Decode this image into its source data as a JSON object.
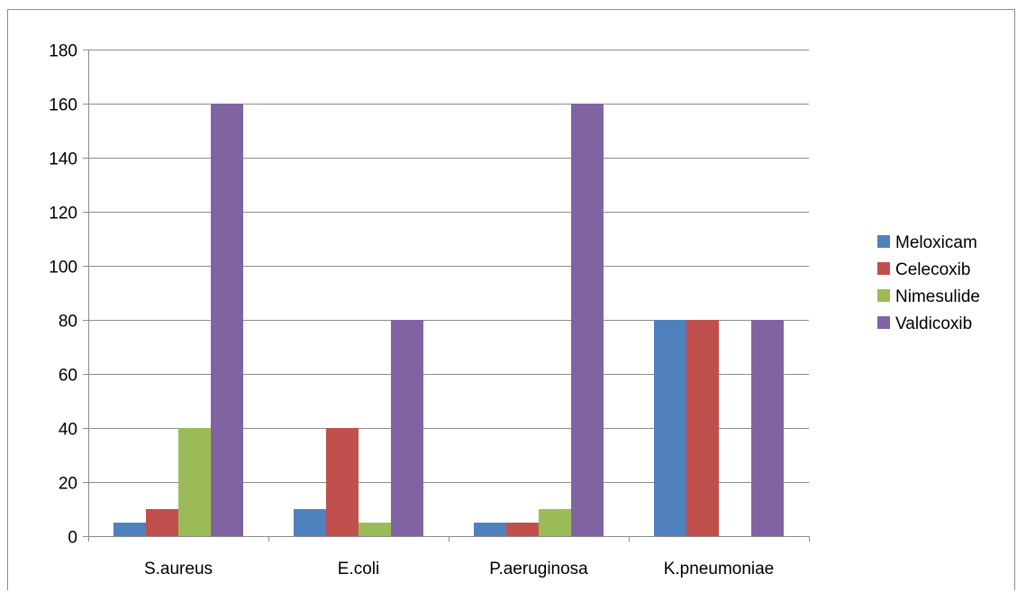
{
  "chart_data": {
    "type": "bar",
    "title": "",
    "xlabel": "",
    "ylabel": "",
    "categories": [
      "S.aureus",
      "E.coli",
      "P.aeruginosa",
      "K.pneumoniae"
    ],
    "series": [
      {
        "name": "Meloxicam",
        "color": "#4f81bd",
        "values": [
          5,
          10,
          5,
          80
        ]
      },
      {
        "name": "Celecoxib",
        "color": "#c0504d",
        "values": [
          10,
          40,
          5,
          80
        ]
      },
      {
        "name": "Nimesulide",
        "color": "#9bbb59",
        "values": [
          40,
          5,
          10,
          0
        ]
      },
      {
        "name": "Valdicoxib",
        "color": "#8064a2",
        "values": [
          160,
          80,
          160,
          80
        ]
      }
    ],
    "ylim": [
      0,
      180
    ],
    "yticks": [
      0,
      20,
      40,
      60,
      80,
      100,
      120,
      140,
      160,
      180
    ],
    "grid": true,
    "legend_position": "right"
  }
}
